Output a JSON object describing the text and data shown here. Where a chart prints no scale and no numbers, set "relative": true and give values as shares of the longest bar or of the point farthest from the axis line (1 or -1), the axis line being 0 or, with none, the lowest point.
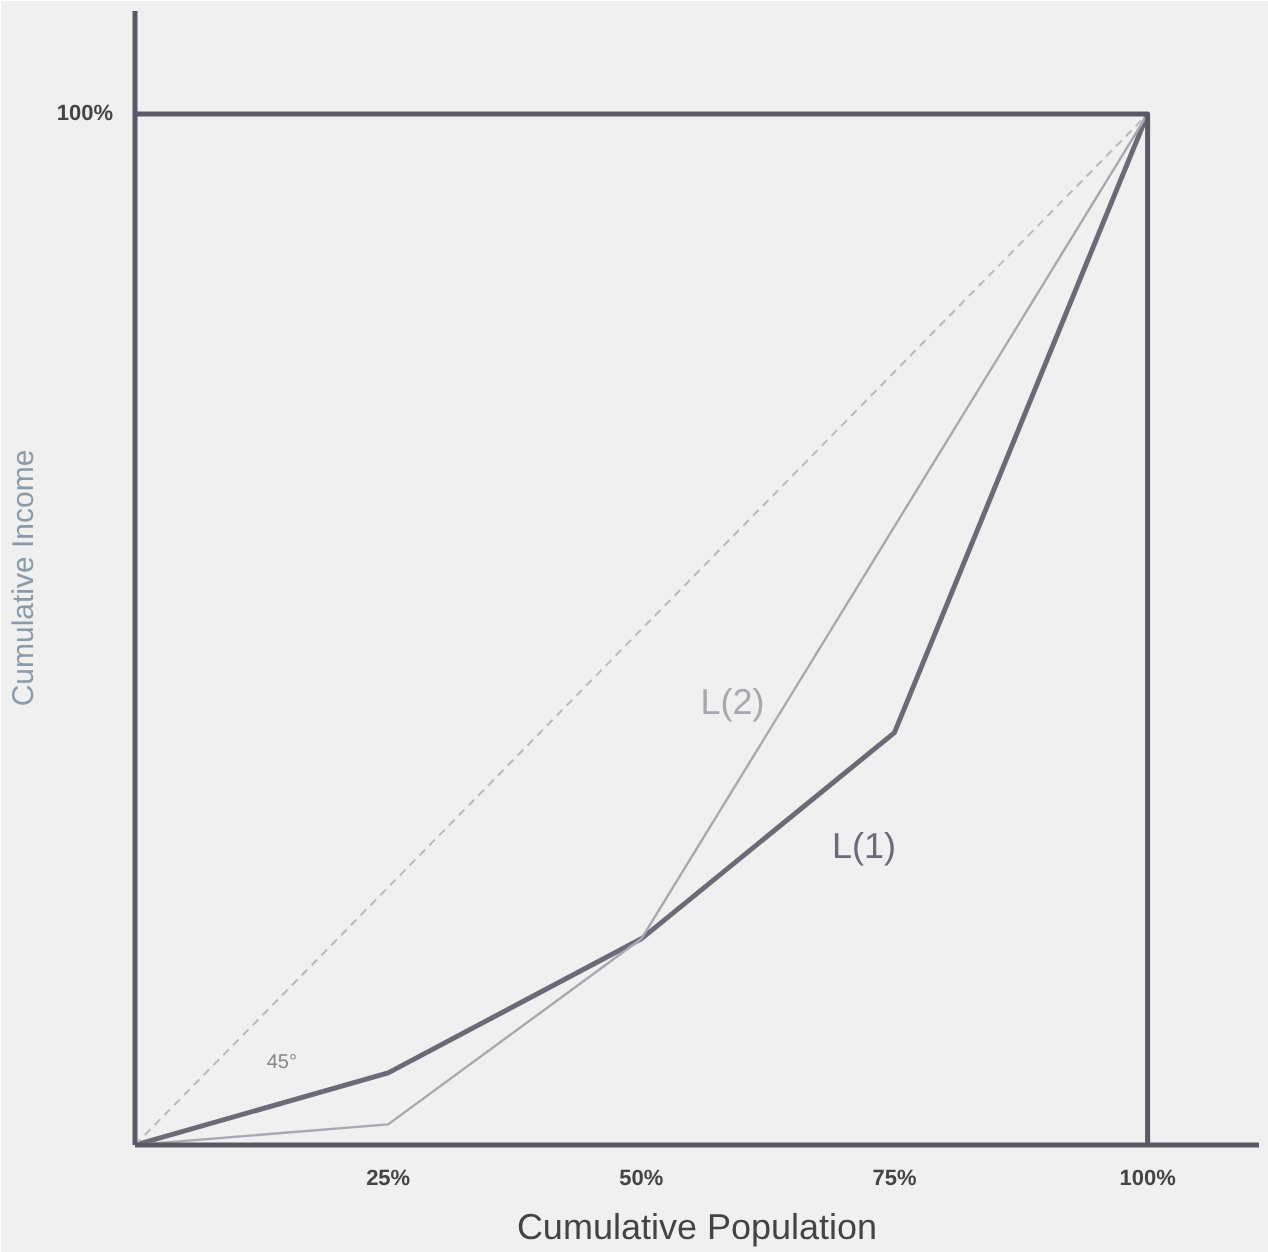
{
  "chart_data": {
    "type": "line",
    "xlabel": "Cumulative Population",
    "ylabel": "Cumulative Income",
    "relative": true,
    "x": [
      0,
      25,
      50,
      75,
      100
    ],
    "series": [
      {
        "name": "L(1)",
        "color": "#6b6b78",
        "values": [
          0,
          0.07,
          0.2,
          0.4,
          1
        ]
      },
      {
        "name": "L(2)",
        "color": "#a8a8b0",
        "x": [
          0,
          25,
          50,
          100
        ],
        "values": [
          0,
          0.02,
          0.2,
          1
        ]
      },
      {
        "color": "#b8b8c0",
        "x": [
          0,
          100
        ],
        "values": [
          0,
          1
        ],
        "line_style": "dashed"
      }
    ],
    "xlim": [
      0,
      111
    ],
    "xticks": [
      {
        "value": 25,
        "label": "25%"
      },
      {
        "value": 50,
        "label": "50%"
      },
      {
        "value": 75,
        "label": "75%"
      },
      {
        "value": 100,
        "label": "100%"
      }
    ],
    "annotations": [
      "100%",
      "45°"
    ],
    "grid": false,
    "marker": "none",
    "line_style": "solid"
  }
}
